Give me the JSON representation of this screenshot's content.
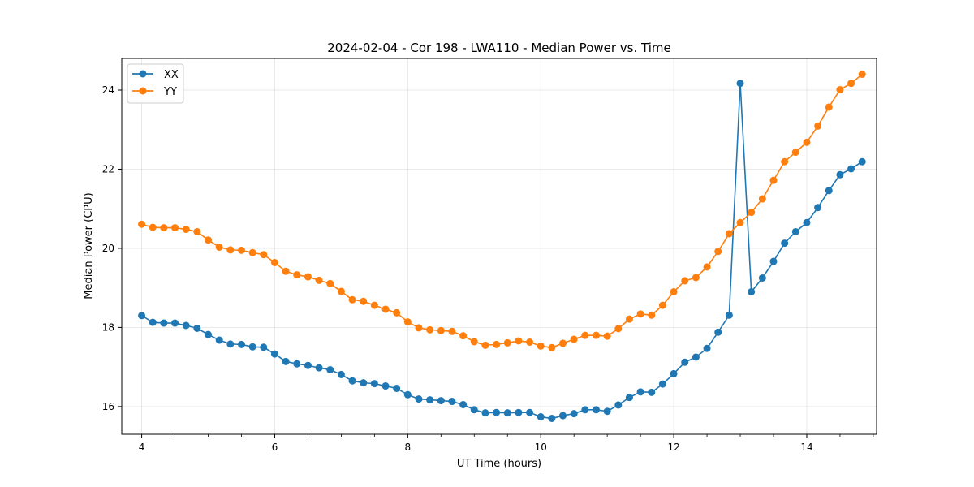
{
  "chart_data": {
    "type": "line",
    "title": "2024-02-04 - Cor 198 - LWA110 - Median Power vs. Time",
    "xlabel": "UT Time (hours)",
    "ylabel": "Median Power (CPU)",
    "xlim": [
      3.7,
      15.05
    ],
    "ylim": [
      15.3,
      24.8
    ],
    "xticks": [
      4,
      6,
      8,
      10,
      12,
      14
    ],
    "yticks": [
      16,
      18,
      20,
      22,
      24
    ],
    "grid": true,
    "legend_position": "top-left",
    "x": [
      4.0,
      4.1667,
      4.3333,
      4.5,
      4.6667,
      4.8333,
      5.0,
      5.1667,
      5.3333,
      5.5,
      5.6667,
      5.8333,
      6.0,
      6.1667,
      6.3333,
      6.5,
      6.6667,
      6.8333,
      7.0,
      7.1667,
      7.3333,
      7.5,
      7.6667,
      7.8333,
      8.0,
      8.1667,
      8.3333,
      8.5,
      8.6667,
      8.8333,
      9.0,
      9.1667,
      9.3333,
      9.5,
      9.6667,
      9.8333,
      10.0,
      10.1667,
      10.3333,
      10.5,
      10.6667,
      10.8333,
      11.0,
      11.1667,
      11.3333,
      11.5,
      11.6667,
      11.8333,
      12.0,
      12.1667,
      12.3333,
      12.5,
      12.6667,
      12.8333,
      13.0,
      13.1667,
      13.3333,
      13.5,
      13.6667,
      13.8333,
      14.0,
      14.1667,
      14.3333,
      14.5,
      14.6667,
      14.8333
    ],
    "series": [
      {
        "name": "XX",
        "color": "#1f77b4",
        "values": [
          18.3,
          18.13,
          18.11,
          18.11,
          18.05,
          17.98,
          17.82,
          17.68,
          17.58,
          17.57,
          17.51,
          17.5,
          17.33,
          17.14,
          17.08,
          17.04,
          16.98,
          16.93,
          16.81,
          16.65,
          16.6,
          16.58,
          16.52,
          16.46,
          16.3,
          16.19,
          16.17,
          16.15,
          16.13,
          16.05,
          15.92,
          15.84,
          15.85,
          15.84,
          15.85,
          15.85,
          15.74,
          15.7,
          15.77,
          15.82,
          15.92,
          15.92,
          15.88,
          16.04,
          16.23,
          16.37,
          16.36,
          16.57,
          16.83,
          17.12,
          17.25,
          17.47,
          17.88,
          18.31,
          24.17,
          18.9,
          19.25,
          19.67,
          20.13,
          20.42,
          20.65,
          21.03,
          21.46,
          21.86,
          22.01,
          22.19
        ]
      },
      {
        "name": "YY",
        "color": "#ff7f0e",
        "values": [
          20.61,
          20.53,
          20.52,
          20.52,
          20.48,
          20.42,
          20.21,
          20.03,
          19.96,
          19.95,
          19.89,
          19.84,
          19.64,
          19.42,
          19.33,
          19.28,
          19.19,
          19.11,
          18.91,
          18.7,
          18.66,
          18.56,
          18.46,
          18.37,
          18.14,
          17.99,
          17.94,
          17.92,
          17.9,
          17.79,
          17.64,
          17.55,
          17.57,
          17.61,
          17.66,
          17.63,
          17.53,
          17.49,
          17.6,
          17.7,
          17.8,
          17.8,
          17.78,
          17.97,
          18.21,
          18.34,
          18.31,
          18.56,
          18.9,
          19.18,
          19.26,
          19.53,
          19.92,
          20.37,
          20.65,
          20.91,
          21.25,
          21.72,
          22.19,
          22.43,
          22.68,
          23.09,
          23.57,
          24.01,
          24.17,
          24.4
        ]
      }
    ]
  }
}
